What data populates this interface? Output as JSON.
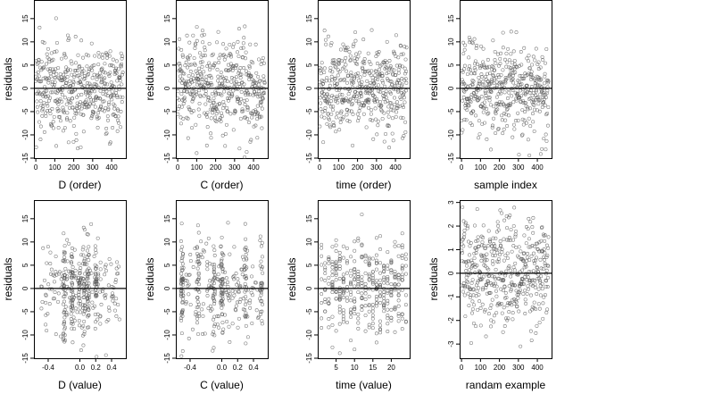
{
  "figure": {
    "layout": "2 rows x 4 columns of residual scatter plots with a horizontal reference line at y = 0"
  },
  "chart_data": [
    {
      "type": "scatter",
      "xlabel": "D (order)",
      "ylabel": "residuals",
      "xlim": [
        -10,
        475
      ],
      "ylim": [
        -15,
        19
      ],
      "xticks": [
        0,
        100,
        200,
        300,
        400
      ],
      "yticks": [
        -15,
        -10,
        -5,
        0,
        5,
        10,
        15
      ],
      "hline": 0,
      "grid": false,
      "pattern": {
        "kind": "index",
        "n": 460,
        "spread": 5.0
      }
    },
    {
      "type": "scatter",
      "xlabel": "C (order)",
      "ylabel": "residuals",
      "xlim": [
        -10,
        475
      ],
      "ylim": [
        -15,
        19
      ],
      "xticks": [
        0,
        100,
        200,
        300,
        400
      ],
      "yticks": [
        -15,
        -10,
        -5,
        0,
        5,
        10,
        15
      ],
      "hline": 0,
      "grid": false,
      "pattern": {
        "kind": "index",
        "n": 460,
        "spread": 5.0
      }
    },
    {
      "type": "scatter",
      "xlabel": "time (order)",
      "ylabel": "residuals",
      "xlim": [
        -10,
        475
      ],
      "ylim": [
        -15,
        19
      ],
      "xticks": [
        0,
        100,
        200,
        300,
        400
      ],
      "yticks": [
        -15,
        -10,
        -5,
        0,
        5,
        10,
        15
      ],
      "hline": 0,
      "grid": false,
      "pattern": {
        "kind": "index",
        "n": 460,
        "spread": 5.0
      }
    },
    {
      "type": "scatter",
      "xlabel": "sample index",
      "ylabel": "residuals",
      "xlim": [
        -10,
        475
      ],
      "ylim": [
        -15,
        19
      ],
      "xticks": [
        0,
        100,
        200,
        300,
        400
      ],
      "yticks": [
        -15,
        -10,
        -5,
        0,
        5,
        10,
        15
      ],
      "hline": 0,
      "grid": false,
      "pattern": {
        "kind": "index",
        "n": 460,
        "spread": 5.0
      }
    },
    {
      "type": "scatter",
      "xlabel": "D (value)",
      "ylabel": "residuals",
      "xlim": [
        -0.58,
        0.58
      ],
      "ylim": [
        -15,
        19
      ],
      "xticks": [
        -0.4,
        0,
        0.2,
        0.4
      ],
      "xtick_labels": [
        "-0.4",
        "0.0",
        "0.2",
        "0.4"
      ],
      "yticks": [
        -15,
        -10,
        -5,
        0,
        5,
        10,
        15
      ],
      "hline": 0,
      "grid": false,
      "pattern": {
        "kind": "clustered",
        "n": 380,
        "spread": 5.0,
        "lo": -0.5,
        "hi": 0.5,
        "clusters": [
          -0.1,
          0.0,
          0.05,
          0.1,
          -0.2,
          0.2
        ]
      }
    },
    {
      "type": "scatter",
      "xlabel": "C (value)",
      "ylabel": "residuals",
      "xlim": [
        -0.58,
        0.58
      ],
      "ylim": [
        -15,
        19
      ],
      "xticks": [
        -0.4,
        0,
        0.2,
        0.4
      ],
      "xtick_labels": [
        "-0.4",
        "0.0",
        "0.2",
        "0.4"
      ],
      "yticks": [
        -15,
        -10,
        -5,
        0,
        5,
        10,
        15
      ],
      "hline": 0,
      "grid": false,
      "pattern": {
        "kind": "clustered",
        "n": 380,
        "spread": 5.0,
        "lo": -0.5,
        "hi": 0.5,
        "clusters": [
          -0.5,
          -0.1,
          0.0,
          0.5,
          -0.3,
          0.3
        ]
      }
    },
    {
      "type": "scatter",
      "xlabel": "time (value)",
      "ylabel": "residuals",
      "xlim": [
        0,
        25
      ],
      "ylim": [
        -15,
        19
      ],
      "xticks": [
        5,
        10,
        15,
        20
      ],
      "yticks": [
        -15,
        -10,
        -5,
        0,
        5,
        10,
        15
      ],
      "hline": 0,
      "grid": false,
      "pattern": {
        "kind": "discrete",
        "n": 380,
        "spread": 5.0,
        "lo": 1,
        "hi": 24
      }
    },
    {
      "type": "scatter",
      "xlabel": "randam example",
      "ylabel": "residuals",
      "xlim": [
        -10,
        475
      ],
      "ylim": [
        -3.6,
        3.1
      ],
      "xticks": [
        0,
        100,
        200,
        300,
        400
      ],
      "yticks": [
        -3,
        -2,
        -1,
        0,
        1,
        2,
        3
      ],
      "hline": 0,
      "grid": false,
      "pattern": {
        "kind": "index",
        "n": 460,
        "spread": 1.1
      }
    }
  ]
}
